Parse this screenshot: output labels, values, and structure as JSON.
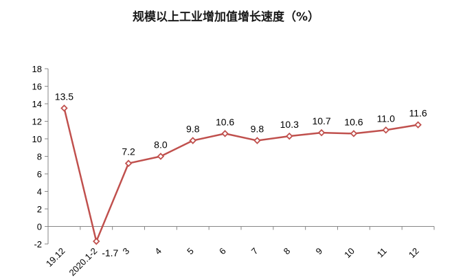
{
  "chart_data": {
    "type": "line",
    "title": "规模以上工业增加值增长速度（%）",
    "categories": [
      "19.12",
      "2020.1-2",
      "3",
      "4",
      "5",
      "6",
      "7",
      "8",
      "9",
      "10",
      "11",
      "12"
    ],
    "series": [
      {
        "values": [
          13.5,
          -1.7,
          7.2,
          8.0,
          9.8,
          10.6,
          9.8,
          10.3,
          10.7,
          10.6,
          11.0,
          11.6
        ],
        "labels": [
          "13.5",
          "-1.7",
          "7.2",
          "8.0",
          "9.8",
          "10.6",
          "9.8",
          "10.3",
          "10.7",
          "10.6",
          "11.0",
          "11.6"
        ],
        "color": "#c0504d",
        "marker": "diamond"
      }
    ],
    "ylim": [
      -2,
      18
    ],
    "yticks": [
      -2,
      0,
      2,
      4,
      6,
      8,
      10,
      12,
      14,
      16,
      18
    ],
    "xlabel": "",
    "ylabel": "",
    "grid": false,
    "legend": "none"
  }
}
